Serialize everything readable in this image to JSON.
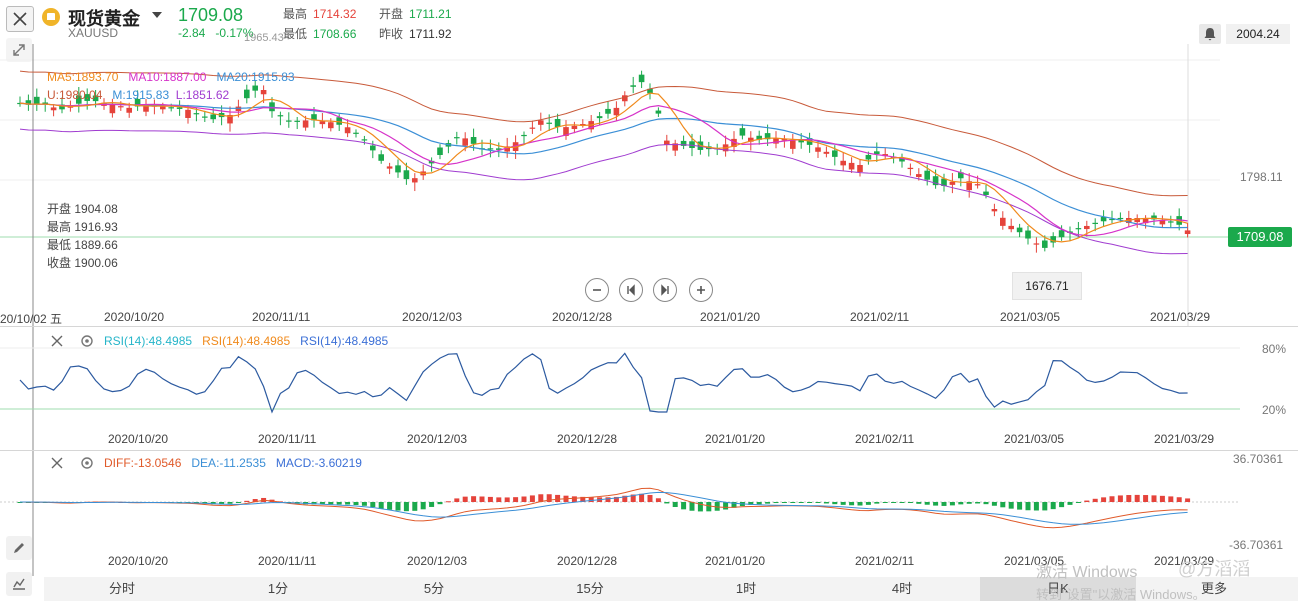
{
  "header": {
    "name": "现货黄金",
    "symbol": "XAUUSD",
    "price": "1709.08",
    "change": "-2.84",
    "change_pct": "-0.17%",
    "high_label": "最高",
    "high_value": "1714.32",
    "open_label": "开盘",
    "open_value": "1711.21",
    "low_label": "最低",
    "low_value": "1708.66",
    "prev_label": "昨收",
    "prev_value": "1711.92",
    "top_right_price": "2004.24"
  },
  "main_chart": {
    "ma_legend": {
      "ma5": "MA5:1893.70",
      "ma10": "MA10:1887.00",
      "ma20": "MA20:1915.83"
    },
    "boll_legend": {
      "u": "U:1980.04",
      "m": "M:1915.83",
      "l": "L:1851.62"
    },
    "hover_ohlc": {
      "open_label": "开盘",
      "open": "1904.08",
      "high_label": "最高",
      "high": "1916.93",
      "low_label": "最低",
      "low": "1889.66",
      "close_label": "收盘",
      "close": "1900.06"
    },
    "overlay_top_value": "1965.43",
    "mid_tick": "1798.11",
    "current_price_tag": "1709.08",
    "low_marker": "1676.71",
    "cursor_date": "20/10/02 五",
    "x_dates": [
      "2020/10/20",
      "2020/11/11",
      "2020/12/03",
      "2020/12/28",
      "2021/01/20",
      "2021/02/11",
      "2021/03/05",
      "2021/03/29"
    ]
  },
  "rsi_panel": {
    "legend1": "RSI(14):48.4985",
    "legend2": "RSI(14):48.4985",
    "legend3": "RSI(14):48.4985",
    "tick_top": "80%",
    "tick_bottom": "20%",
    "x_dates": [
      "2020/10/20",
      "2020/11/11",
      "2020/12/03",
      "2020/12/28",
      "2021/01/20",
      "2021/02/11",
      "2021/03/05",
      "2021/03/29"
    ]
  },
  "macd_panel": {
    "diff": "DIFF:-13.0546",
    "dea": "DEA:-11.2535",
    "macd": "MACD:-3.60219",
    "tick_top": "36.70361",
    "tick_bottom": "-36.70361",
    "x_dates": [
      "2020/10/20",
      "2020/11/11",
      "2020/12/03",
      "2020/12/28",
      "2021/01/20",
      "2021/02/11",
      "2021/03/05",
      "2021/03/29"
    ]
  },
  "tabs": [
    "分时",
    "1分",
    "5分",
    "15分",
    "1时",
    "4时",
    "日K",
    "更多"
  ],
  "watermark": {
    "line1": "激活 Windows",
    "line2": "转到\"设置\"以激活 Windows。",
    "brand": "@方滔滔"
  },
  "colors": {
    "up": "#e5433b",
    "down": "#1ba94c",
    "ma5": "#f08a1c",
    "ma10": "#d633c9",
    "ma20": "#3b8fd6",
    "boll_u": "#c85a3a",
    "boll_l": "#a03cd0"
  },
  "icons": [
    "close-icon",
    "collapse-icon",
    "bell-icon",
    "zoom-out-icon",
    "prev-icon",
    "next-icon",
    "zoom-in-icon",
    "gear-icon",
    "pencil-icon",
    "chart-type-icon"
  ]
}
